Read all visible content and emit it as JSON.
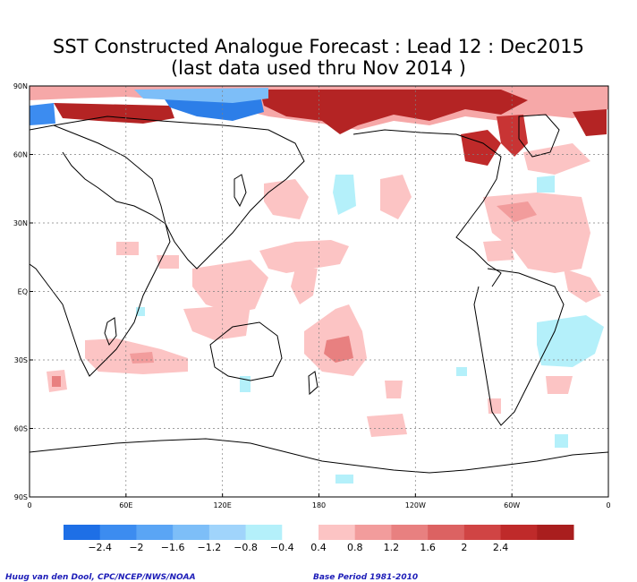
{
  "title_line1": "SST Constructed Analogue Forecast : Lead 12 : Dec2015",
  "title_line2": "(last data used thru Nov 2014 )",
  "axes": {
    "lat_labels": [
      "90N",
      "60N",
      "30N",
      "EQ",
      "30S",
      "60S",
      "90S"
    ],
    "lon_labels": [
      "0",
      "60E",
      "120E",
      "180",
      "120W",
      "60W",
      "0"
    ]
  },
  "colorbar": {
    "colors": [
      "#1e6fe6",
      "#3c8cf0",
      "#5aa5f5",
      "#7dbef8",
      "#a0d4fb",
      "#b4f0fa",
      "#ffffff",
      "#fcc4c4",
      "#f29c9c",
      "#e88080",
      "#dc6262",
      "#d04444",
      "#bf2a2a",
      "#a91e1e"
    ],
    "labels": [
      "−2.4",
      "−2",
      "−1.6",
      "−1.2",
      "−0.8",
      "−0.4",
      "0.4",
      "0.8",
      "1.2",
      "1.6",
      "2",
      "2.4"
    ]
  },
  "footer": {
    "left": "Huug van den Dool, CPC/NCEP/NWS/NOAA",
    "right": "Base Period 1981-2010"
  },
  "colors": {
    "warm_light": "#fcc4c4",
    "warm_mid": "#e88080",
    "warm_dark": "#b42424",
    "cold_light": "#b4f0fa",
    "cold_dark": "#2c7ee8",
    "grid": "#808080",
    "coast": "#000000"
  }
}
